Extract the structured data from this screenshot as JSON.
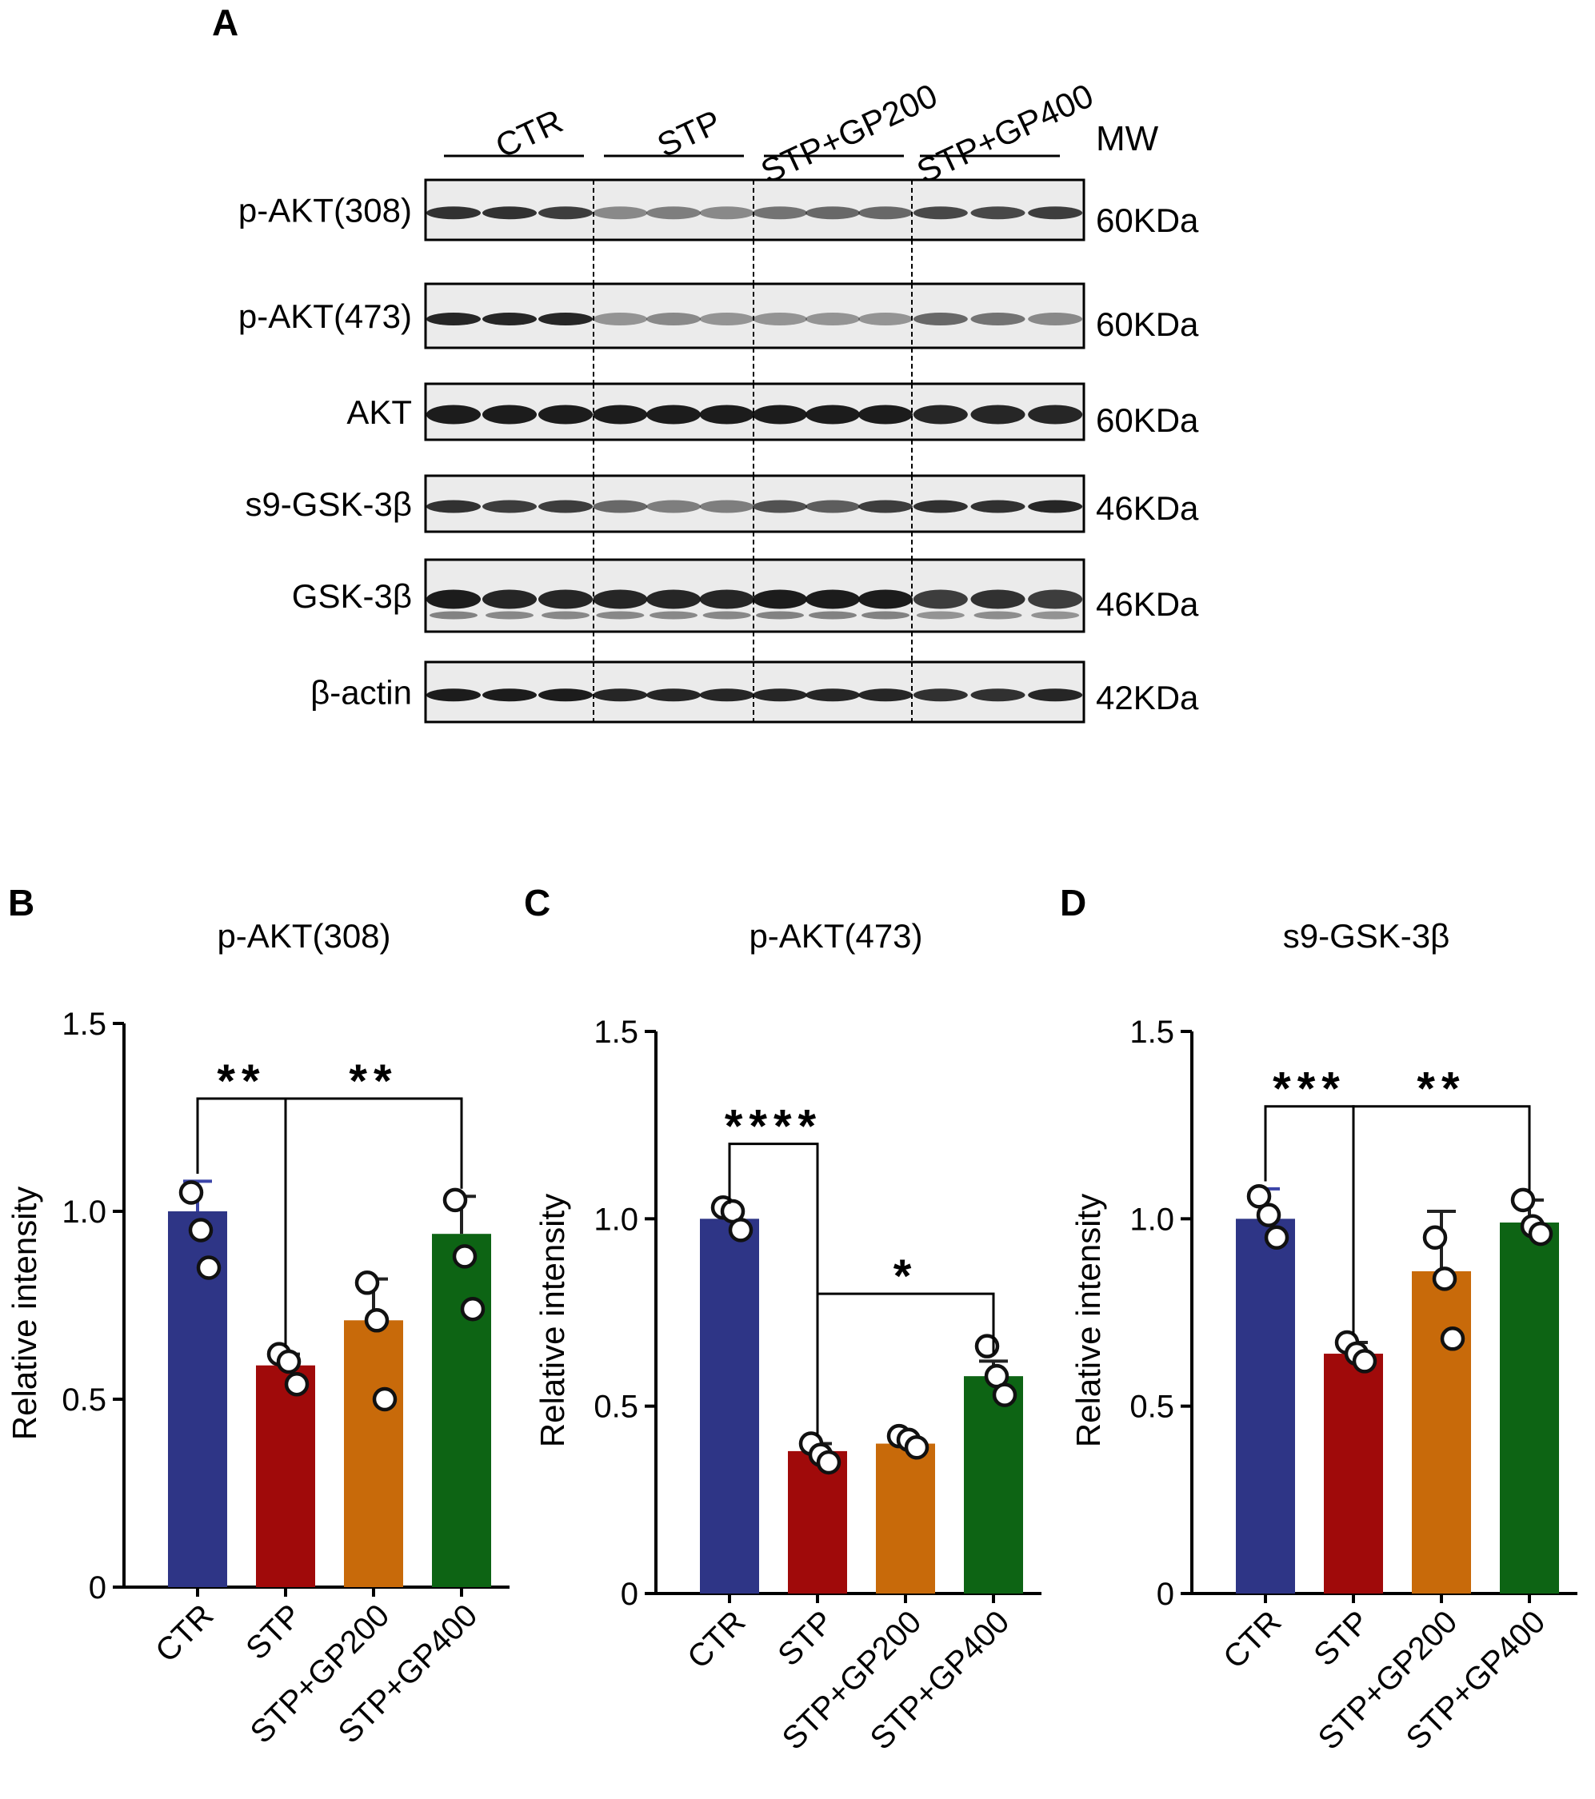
{
  "panel_letters": [
    "A",
    "B",
    "C",
    "D"
  ],
  "blot": {
    "groups": [
      "CTR",
      "STP",
      "STP+GP200",
      "STP+GP400"
    ],
    "mw_header": "MW",
    "rows": [
      {
        "label": "p-AKT(308)",
        "mw": "60KDa"
      },
      {
        "label": "p-AKT(473)",
        "mw": "60KDa"
      },
      {
        "label": "AKT",
        "mw": "60KDa"
      },
      {
        "label": "s9-GSK-3β",
        "mw": "46KDa"
      },
      {
        "label": "GSK-3β",
        "mw": "46KDa"
      },
      {
        "label": "β-actin",
        "mw": "42KDa"
      }
    ]
  },
  "colors": {
    "CTR": "#2e3586",
    "STP": "#a00a0a",
    "STP+GP200": "#c86a0a",
    "STP+GP400": "#0d6414"
  },
  "chart_data": [
    {
      "type": "bar",
      "title": "p-AKT(308)",
      "ylabel": "Relative intensity",
      "ylim": [
        0,
        1.5
      ],
      "yticks": [
        "0",
        "0.5",
        "1.0",
        "1.5"
      ],
      "categories": [
        "CTR",
        "STP",
        "STP+GP200",
        "STP+GP400"
      ],
      "values": [
        1.0,
        0.59,
        0.71,
        0.94
      ],
      "error": [
        0.08,
        0.03,
        0.11,
        0.1
      ],
      "points": [
        [
          1.05,
          0.95,
          0.85
        ],
        [
          0.62,
          0.6,
          0.54
        ],
        [
          0.81,
          0.71,
          0.5
        ],
        [
          1.03,
          0.88,
          0.74
        ]
      ],
      "significance": [
        {
          "from": 0,
          "to": 1,
          "label": "**",
          "level": 1.3
        },
        {
          "from": 1,
          "to": 3,
          "label": "**",
          "level": 1.3
        }
      ]
    },
    {
      "type": "bar",
      "title": "p-AKT(473)",
      "ylabel": "Relative intensity",
      "ylim": [
        0,
        1.5
      ],
      "yticks": [
        "0",
        "0.5",
        "1.0",
        "1.5"
      ],
      "categories": [
        "CTR",
        "STP",
        "STP+GP200",
        "STP+GP400"
      ],
      "values": [
        1.0,
        0.38,
        0.4,
        0.58
      ],
      "error": [
        0.02,
        0.02,
        0.01,
        0.04
      ],
      "points": [
        [
          1.03,
          1.02,
          0.97
        ],
        [
          0.4,
          0.37,
          0.35
        ],
        [
          0.42,
          0.41,
          0.39
        ],
        [
          0.66,
          0.58,
          0.53
        ]
      ],
      "significance": [
        {
          "from": 0,
          "to": 1,
          "label": "****",
          "level": 1.2
        },
        {
          "from": 1,
          "to": 3,
          "label": "*",
          "level": 0.8
        }
      ]
    },
    {
      "type": "bar",
      "title": "s9-GSK-3β",
      "ylabel": "Relative intensity",
      "ylim": [
        0,
        1.5
      ],
      "yticks": [
        "0",
        "0.5",
        "1.0",
        "1.5"
      ],
      "categories": [
        "CTR",
        "STP",
        "STP+GP200",
        "STP+GP400"
      ],
      "values": [
        1.0,
        0.64,
        0.86,
        0.99
      ],
      "error": [
        0.08,
        0.03,
        0.16,
        0.06
      ],
      "points": [
        [
          1.06,
          1.01,
          0.95
        ],
        [
          0.67,
          0.64,
          0.62
        ],
        [
          0.95,
          0.84,
          0.68
        ],
        [
          1.05,
          0.98,
          0.96
        ]
      ],
      "significance": [
        {
          "from": 0,
          "to": 1,
          "label": "***",
          "level": 1.3
        },
        {
          "from": 1,
          "to": 3,
          "label": "**",
          "level": 1.3
        }
      ]
    }
  ]
}
